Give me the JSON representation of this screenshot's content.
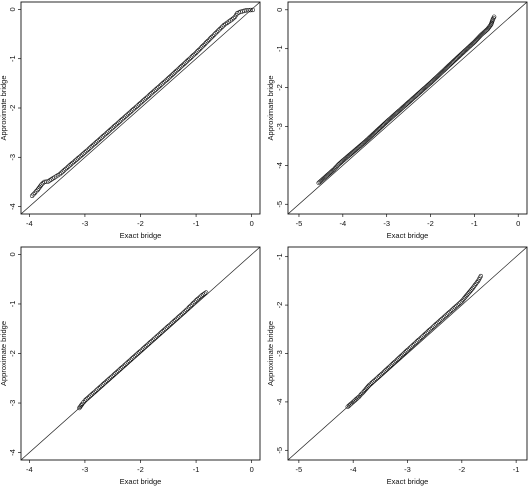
{
  "chart_data": [
    {
      "type": "scatter",
      "xlabel": "Exact bridge",
      "ylabel": "Approximate bridge",
      "xlim": [
        -4.15,
        0.15
      ],
      "ylim": [
        -4.15,
        0.15
      ],
      "xticks": [
        -4,
        -3,
        -2,
        -1,
        0
      ],
      "yticks": [
        -4,
        -3,
        -2,
        -1,
        0
      ],
      "reference_line": "y = x",
      "points": [
        [
          -3.95,
          -3.78
        ],
        [
          -3.85,
          -3.66
        ],
        [
          -3.78,
          -3.55
        ],
        [
          -3.73,
          -3.5
        ],
        [
          -3.66,
          -3.49
        ],
        [
          -3.55,
          -3.41
        ],
        [
          -3.45,
          -3.34
        ],
        [
          -3.3,
          -3.19
        ],
        [
          -3.0,
          -2.9
        ],
        [
          -2.5,
          -2.4
        ],
        [
          -2.0,
          -1.9
        ],
        [
          -1.5,
          -1.4
        ],
        [
          -1.0,
          -0.88
        ],
        [
          -0.7,
          -0.54
        ],
        [
          -0.5,
          -0.32
        ],
        [
          -0.35,
          -0.2
        ],
        [
          -0.3,
          -0.15
        ],
        [
          -0.26,
          -0.08
        ],
        [
          -0.2,
          -0.05
        ],
        [
          -0.1,
          -0.02
        ],
        [
          0.02,
          -0.01
        ]
      ]
    },
    {
      "type": "scatter",
      "xlabel": "Exact bridge",
      "ylabel": "Approximate bridge",
      "xlim": [
        -5.25,
        0.2
      ],
      "ylim": [
        -5.25,
        0.2
      ],
      "xticks": [
        -5,
        -4,
        -3,
        -2,
        -1,
        0
      ],
      "yticks": [
        -5,
        -4,
        -3,
        -2,
        -1,
        0
      ],
      "reference_line": "y = x",
      "points": [
        [
          -4.55,
          -4.45
        ],
        [
          -4.3,
          -4.2
        ],
        [
          -4.2,
          -4.1
        ],
        [
          -4.1,
          -3.98
        ],
        [
          -4.0,
          -3.88
        ],
        [
          -3.5,
          -3.4
        ],
        [
          -3.0,
          -2.88
        ],
        [
          -2.5,
          -2.38
        ],
        [
          -2.0,
          -1.88
        ],
        [
          -1.5,
          -1.35
        ],
        [
          -1.0,
          -0.83
        ],
        [
          -0.85,
          -0.65
        ],
        [
          -0.7,
          -0.5
        ],
        [
          -0.62,
          -0.38
        ],
        [
          -0.58,
          -0.25
        ],
        [
          -0.55,
          -0.18
        ]
      ]
    },
    {
      "type": "scatter",
      "xlabel": "Exact bridge",
      "ylabel": "Approximate bridge",
      "xlim": [
        -4.15,
        0.15
      ],
      "ylim": [
        -4.15,
        0.15
      ],
      "xticks": [
        -4,
        -3,
        -2,
        -1,
        0
      ],
      "yticks": [
        -4,
        -3,
        -2,
        -1,
        0
      ],
      "reference_line": "y = x",
      "points": [
        [
          -3.1,
          -3.1
        ],
        [
          -3.05,
          -3.02
        ],
        [
          -3.0,
          -2.95
        ],
        [
          -2.95,
          -2.9
        ],
        [
          -2.9,
          -2.85
        ],
        [
          -2.5,
          -2.45
        ],
        [
          -2.0,
          -1.95
        ],
        [
          -1.5,
          -1.45
        ],
        [
          -1.2,
          -1.15
        ],
        [
          -1.0,
          -0.93
        ],
        [
          -0.9,
          -0.83
        ],
        [
          -0.82,
          -0.77
        ]
      ]
    },
    {
      "type": "scatter",
      "xlabel": "Exact bridge",
      "ylabel": "Approximate bridge",
      "xlim": [
        -5.2,
        -0.8
      ],
      "ylim": [
        -5.2,
        -0.8
      ],
      "xticks": [
        -5,
        -4,
        -3,
        -2,
        -1
      ],
      "yticks": [
        -5,
        -4,
        -3,
        -2,
        -1
      ],
      "reference_line": "y = x",
      "points": [
        [
          -4.1,
          -4.1
        ],
        [
          -4.0,
          -4.0
        ],
        [
          -3.9,
          -3.9
        ],
        [
          -3.8,
          -3.78
        ],
        [
          -3.7,
          -3.65
        ],
        [
          -3.5,
          -3.45
        ],
        [
          -3.0,
          -2.93
        ],
        [
          -2.5,
          -2.42
        ],
        [
          -2.0,
          -1.92
        ],
        [
          -1.8,
          -1.65
        ],
        [
          -1.7,
          -1.5
        ],
        [
          -1.65,
          -1.4
        ]
      ]
    }
  ]
}
